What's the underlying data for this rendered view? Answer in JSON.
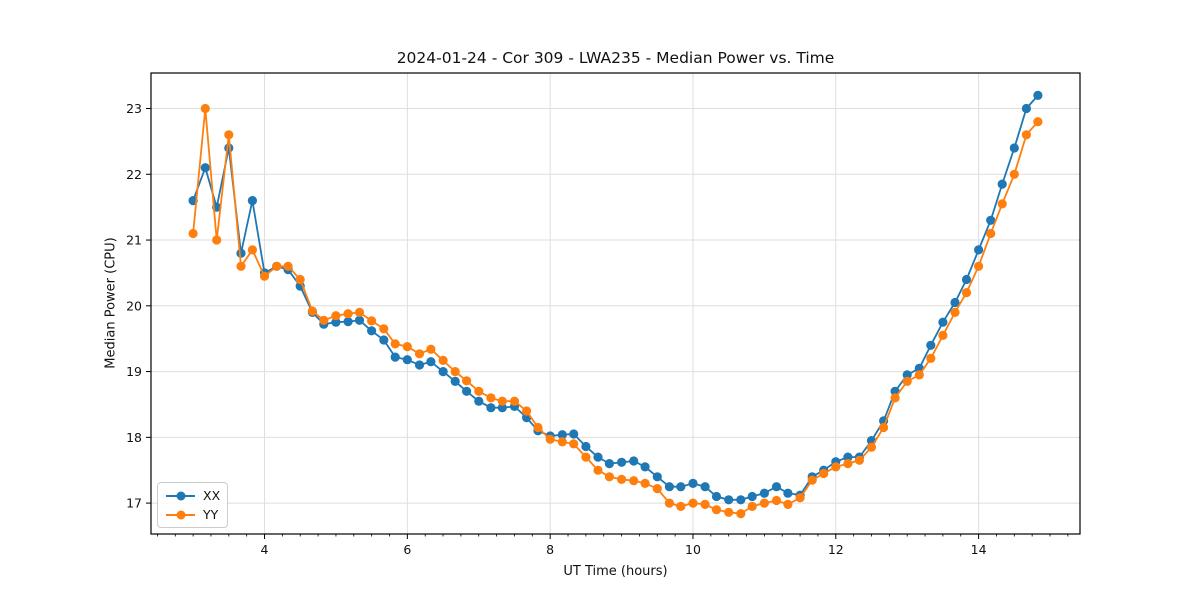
{
  "figure": {
    "background": "#ffffff",
    "text_color": "#111111",
    "grid_color": "#dedede",
    "frame_color": "#000000"
  },
  "chart_data": {
    "type": "line",
    "title": "2024-01-24 - Cor 309 - LWA235 - Median Power vs. Time",
    "xlabel": "UT Time (hours)",
    "ylabel": "Median Power (CPU)",
    "xlim": [
      2.41,
      15.42
    ],
    "ylim": [
      16.53,
      23.54
    ],
    "xticks": [
      4,
      6,
      8,
      10,
      12,
      14
    ],
    "yticks": [
      17,
      18,
      19,
      20,
      21,
      22,
      23
    ],
    "x_minor_tick_step": 0.25,
    "grid": true,
    "legend_position": "lower left",
    "marker": "circle",
    "x": [
      3.0,
      3.17,
      3.33,
      3.5,
      3.67,
      3.83,
      4.0,
      4.17,
      4.33,
      4.5,
      4.67,
      4.83,
      5.0,
      5.17,
      5.33,
      5.5,
      5.67,
      5.83,
      6.0,
      6.17,
      6.33,
      6.5,
      6.67,
      6.83,
      7.0,
      7.17,
      7.33,
      7.5,
      7.67,
      7.83,
      8.0,
      8.17,
      8.33,
      8.5,
      8.67,
      8.83,
      9.0,
      9.17,
      9.33,
      9.5,
      9.67,
      9.83,
      10.0,
      10.17,
      10.33,
      10.5,
      10.67,
      10.83,
      11.0,
      11.17,
      11.33,
      11.5,
      11.67,
      11.83,
      12.0,
      12.17,
      12.33,
      12.5,
      12.67,
      12.83,
      13.0,
      13.17,
      13.33,
      13.5,
      13.67,
      13.83,
      14.0,
      14.17,
      14.33,
      14.5,
      14.67,
      14.83
    ],
    "series": [
      {
        "name": "XX",
        "color": "#1f77b4",
        "values": [
          21.6,
          22.1,
          21.5,
          22.4,
          20.8,
          21.6,
          20.5,
          20.6,
          20.55,
          20.3,
          19.9,
          19.72,
          19.75,
          19.76,
          19.78,
          19.62,
          19.48,
          19.22,
          19.18,
          19.1,
          19.15,
          19.0,
          18.85,
          18.7,
          18.55,
          18.45,
          18.45,
          18.47,
          18.3,
          18.1,
          18.02,
          18.04,
          18.05,
          17.86,
          17.7,
          17.6,
          17.62,
          17.64,
          17.55,
          17.4,
          17.25,
          17.25,
          17.3,
          17.25,
          17.1,
          17.05,
          17.05,
          17.1,
          17.15,
          17.25,
          17.15,
          17.12,
          17.4,
          17.5,
          17.63,
          17.7,
          17.7,
          17.95,
          18.25,
          18.7,
          18.95,
          19.05,
          19.4,
          19.75,
          20.05,
          20.4,
          20.85,
          21.3,
          21.85,
          22.4,
          23.0,
          23.2
        ]
      },
      {
        "name": "YY",
        "color": "#ff7f0e",
        "values": [
          21.1,
          23.0,
          21.0,
          22.6,
          20.6,
          20.85,
          20.45,
          20.6,
          20.6,
          20.4,
          19.92,
          19.78,
          19.85,
          19.88,
          19.9,
          19.77,
          19.65,
          19.42,
          19.38,
          19.27,
          19.34,
          19.17,
          19.0,
          18.86,
          18.7,
          18.6,
          18.55,
          18.55,
          18.4,
          18.15,
          17.97,
          17.93,
          17.9,
          17.7,
          17.5,
          17.4,
          17.36,
          17.34,
          17.3,
          17.22,
          17.0,
          16.95,
          17.0,
          16.98,
          16.9,
          16.86,
          16.84,
          16.95,
          17.0,
          17.04,
          16.98,
          17.08,
          17.35,
          17.45,
          17.55,
          17.6,
          17.65,
          17.85,
          18.15,
          18.6,
          18.85,
          18.95,
          19.2,
          19.55,
          19.9,
          20.2,
          20.6,
          21.1,
          21.55,
          22.0,
          22.6,
          22.8
        ]
      }
    ]
  }
}
